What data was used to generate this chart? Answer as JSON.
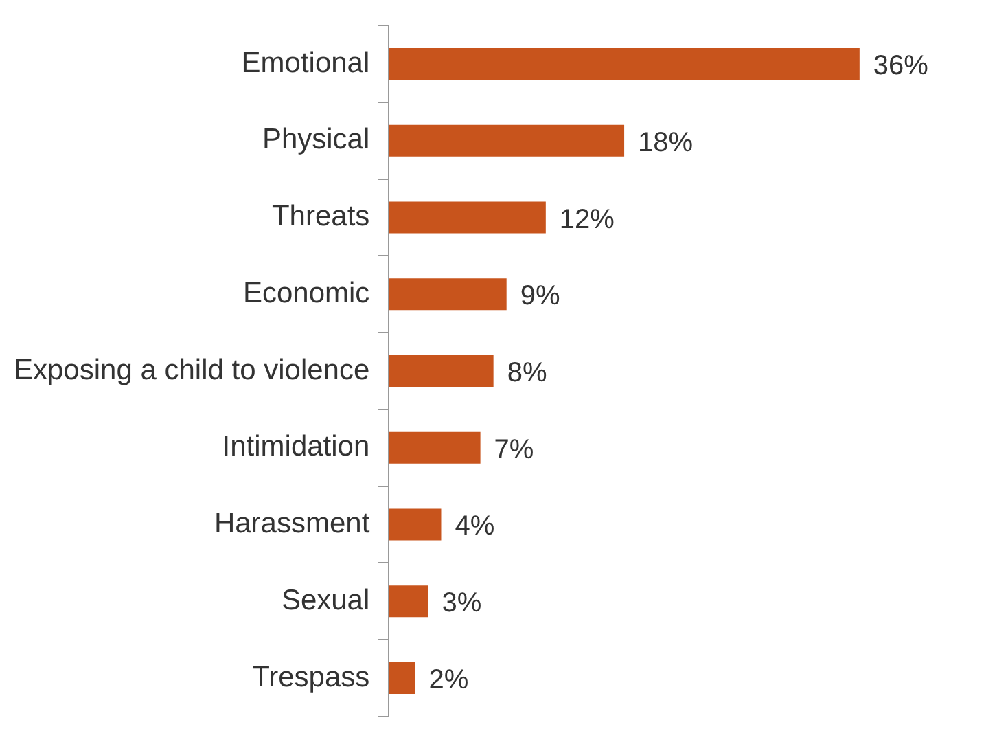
{
  "chart_data": {
    "type": "bar",
    "orientation": "horizontal",
    "categories": [
      "Emotional",
      "Physical",
      "Threats",
      "Economic",
      "Exposing a child to violence",
      "Intimidation",
      "Harassment",
      "Sexual",
      "Trespass"
    ],
    "values": [
      36,
      18,
      12,
      9,
      8,
      7,
      4,
      3,
      2
    ],
    "value_labels": [
      "36%",
      "18%",
      "12%",
      "9%",
      "8%",
      "7%",
      "4%",
      "3%",
      "2%"
    ],
    "color": "#c8541c",
    "grid": false,
    "legend": false
  }
}
